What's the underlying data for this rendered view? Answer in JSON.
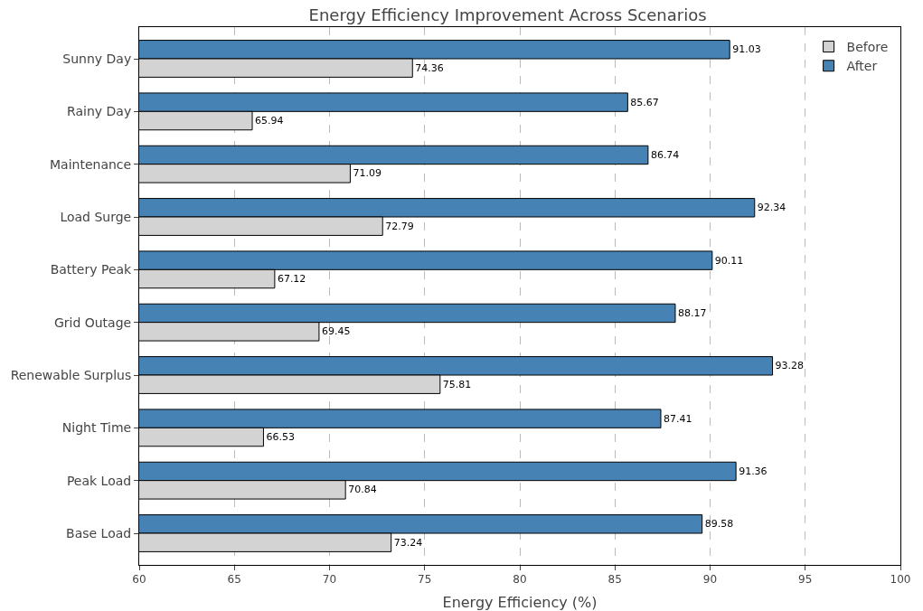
{
  "chart_data": {
    "type": "bar",
    "orientation": "horizontal",
    "title": "Energy Efficiency Improvement Across Scenarios",
    "xlabel": "Energy Efficiency (%)",
    "categories": [
      "Sunny Day",
      "Rainy Day",
      "Maintenance",
      "Load Surge",
      "Battery Peak",
      "Grid Outage",
      "Renewable Surplus",
      "Night Time",
      "Peak Load",
      "Base Load"
    ],
    "series": [
      {
        "name": "Before",
        "color": "#d3d3d3",
        "values": [
          74.36,
          65.94,
          71.09,
          72.79,
          67.12,
          69.45,
          75.81,
          66.53,
          70.84,
          73.24
        ]
      },
      {
        "name": "After",
        "color": "#4682b4",
        "values": [
          91.03,
          85.67,
          86.74,
          92.34,
          90.11,
          88.17,
          93.28,
          87.41,
          91.36,
          89.58
        ]
      }
    ],
    "xlim": [
      60,
      100
    ],
    "xticks": [
      60,
      65,
      70,
      75,
      80,
      85,
      90,
      95,
      100
    ],
    "grid": "x",
    "legend": "top right",
    "data_labels": true
  }
}
